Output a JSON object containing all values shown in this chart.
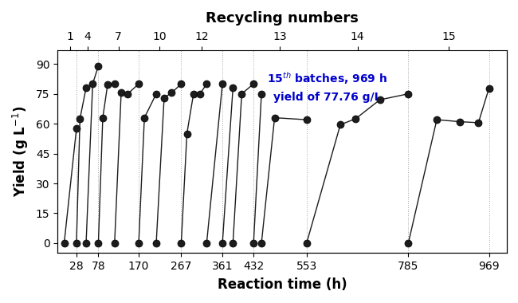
{
  "xlabel": "Reaction time (h)",
  "ylabel": "Yield (g L$^{-1}$)",
  "top_xlabel": "Recycling numbers",
  "annotation_line1": "15$^{th}$ batches, 969 h",
  "annotation_line2": "yield of 77.76 g/L",
  "annotation_color": "#0000cc",
  "ylim": [
    -5,
    97
  ],
  "yticks": [
    0,
    15,
    30,
    45,
    60,
    75,
    90
  ],
  "xlim": [
    -15,
    1010
  ],
  "bottom_xtick_positions": [
    28,
    78,
    170,
    267,
    361,
    432,
    553,
    785,
    969
  ],
  "bottom_xtick_labels": [
    "28",
    "78",
    "170",
    "267",
    "361",
    "432",
    "553",
    "785",
    "969"
  ],
  "top_xtick_positions": [
    14,
    53,
    124,
    218,
    314,
    492,
    669,
    877
  ],
  "top_xtick_labels": [
    "1",
    "4",
    "7",
    "10",
    "12",
    "13",
    "14",
    "15"
  ],
  "vgrid_positions": [
    28,
    78,
    170,
    267,
    361,
    432,
    553,
    785,
    969
  ],
  "batches": [
    [
      [
        0,
        0
      ],
      [
        28,
        57.5
      ]
    ],
    [
      [
        28,
        0
      ],
      [
        36,
        62.5
      ],
      [
        50,
        78.0
      ]
    ],
    [
      [
        50,
        0
      ],
      [
        65,
        80.0
      ],
      [
        78,
        89.0
      ]
    ],
    [
      [
        78,
        0
      ],
      [
        88,
        63.0
      ],
      [
        99,
        79.5
      ],
      [
        115,
        80.0
      ]
    ],
    [
      [
        115,
        0
      ],
      [
        130,
        75.5
      ],
      [
        145,
        75.0
      ],
      [
        170,
        80.0
      ]
    ],
    [
      [
        170,
        0
      ],
      [
        183,
        63.0
      ],
      [
        210,
        75.0
      ]
    ],
    [
      [
        210,
        0
      ],
      [
        228,
        73.0
      ],
      [
        245,
        75.5
      ],
      [
        267,
        80.0
      ]
    ],
    [
      [
        267,
        0
      ],
      [
        280,
        55.0
      ],
      [
        295,
        75.0
      ],
      [
        310,
        75.0
      ],
      [
        325,
        80.0
      ]
    ],
    [
      [
        325,
        0
      ],
      [
        361,
        80.0
      ]
    ],
    [
      [
        361,
        0
      ],
      [
        385,
        78.0
      ]
    ],
    [
      [
        385,
        0
      ],
      [
        405,
        75.0
      ],
      [
        432,
        80.0
      ]
    ],
    [
      [
        432,
        0
      ],
      [
        450,
        75.0
      ]
    ],
    [
      [
        450,
        0
      ],
      [
        480,
        63.0
      ],
      [
        553,
        62.0
      ]
    ],
    [
      [
        553,
        0
      ],
      [
        630,
        59.5
      ],
      [
        665,
        62.5
      ],
      [
        720,
        72.0
      ],
      [
        785,
        75.0
      ]
    ],
    [
      [
        785,
        0
      ],
      [
        850,
        62.0
      ],
      [
        903,
        61.0
      ],
      [
        945,
        60.5
      ],
      [
        969,
        77.76
      ]
    ]
  ],
  "marker_color": "#1c1c1c",
  "marker_size": 6.5,
  "line_width": 1.0,
  "figsize": [
    6.5,
    3.8
  ],
  "dpi": 100
}
